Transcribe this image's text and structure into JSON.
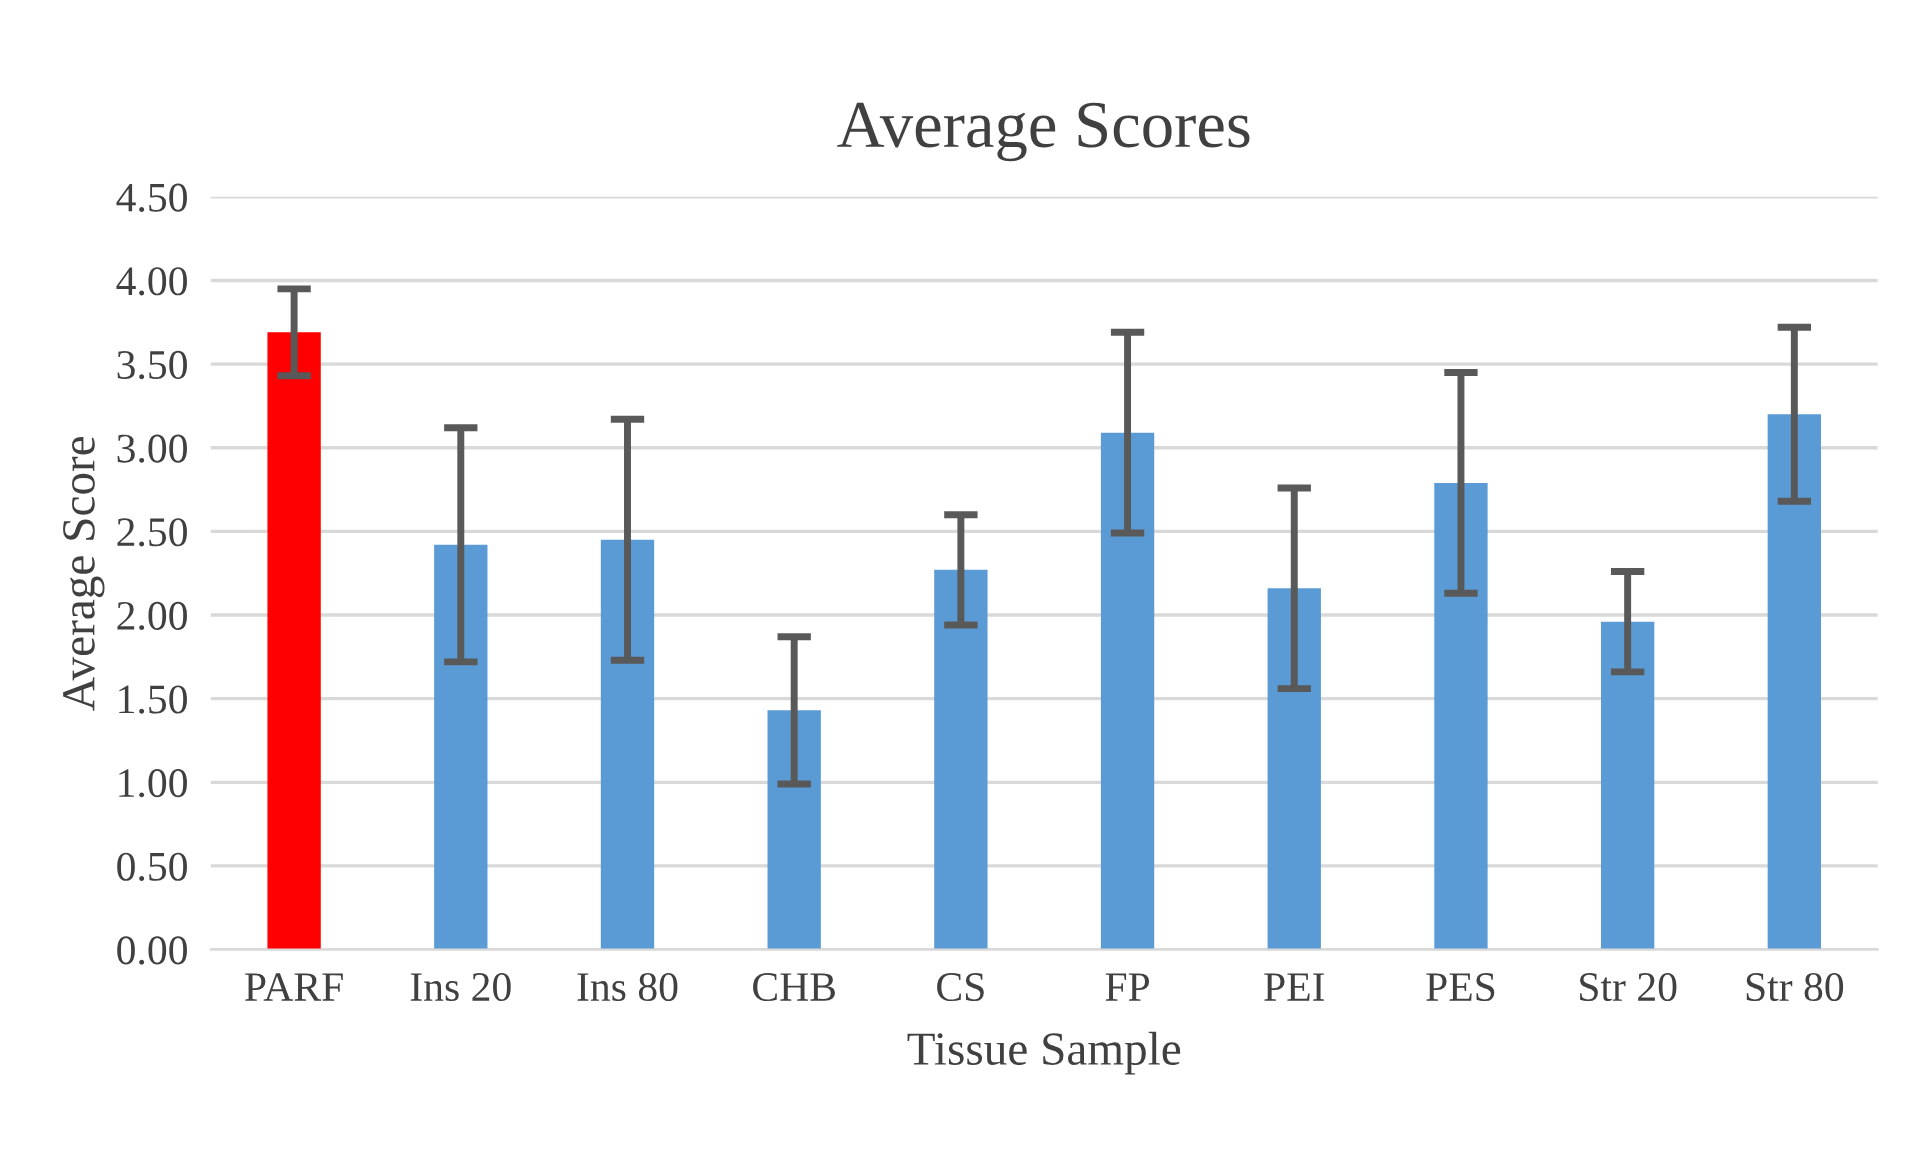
{
  "chart_data": {
    "type": "bar",
    "title": "Average Scores",
    "xlabel": "Tissue Sample",
    "ylabel": "Average Score",
    "categories": [
      "PARF",
      "Ins 20",
      "Ins 80",
      "CHB",
      "CS",
      "FP",
      "PEI",
      "PES",
      "Str 20",
      "Str 80"
    ],
    "values": [
      3.69,
      2.42,
      2.45,
      1.43,
      2.27,
      3.09,
      2.16,
      2.79,
      1.96,
      3.2
    ],
    "errors": [
      0.26,
      0.7,
      0.72,
      0.44,
      0.33,
      0.6,
      0.6,
      0.66,
      0.3,
      0.52
    ],
    "colors": [
      "#ff0000",
      "#5b9bd5",
      "#5b9bd5",
      "#5b9bd5",
      "#5b9bd5",
      "#5b9bd5",
      "#5b9bd5",
      "#5b9bd5",
      "#5b9bd5",
      "#5b9bd5"
    ],
    "ylim": [
      0,
      4.5
    ],
    "yticks": [
      {
        "value": 0,
        "label": "0.00"
      },
      {
        "value": 0.5,
        "label": "0.50"
      },
      {
        "value": 1,
        "label": "1.00"
      },
      {
        "value": 1.5,
        "label": "1.50"
      },
      {
        "value": 2,
        "label": "2.00"
      },
      {
        "value": 2.5,
        "label": "2.50"
      },
      {
        "value": 3,
        "label": "3.00"
      },
      {
        "value": 3.5,
        "label": "3.50"
      },
      {
        "value": 4,
        "label": "4.00"
      },
      {
        "value": 4.5,
        "label": "4.50"
      }
    ],
    "grid": "y",
    "legend": false
  }
}
